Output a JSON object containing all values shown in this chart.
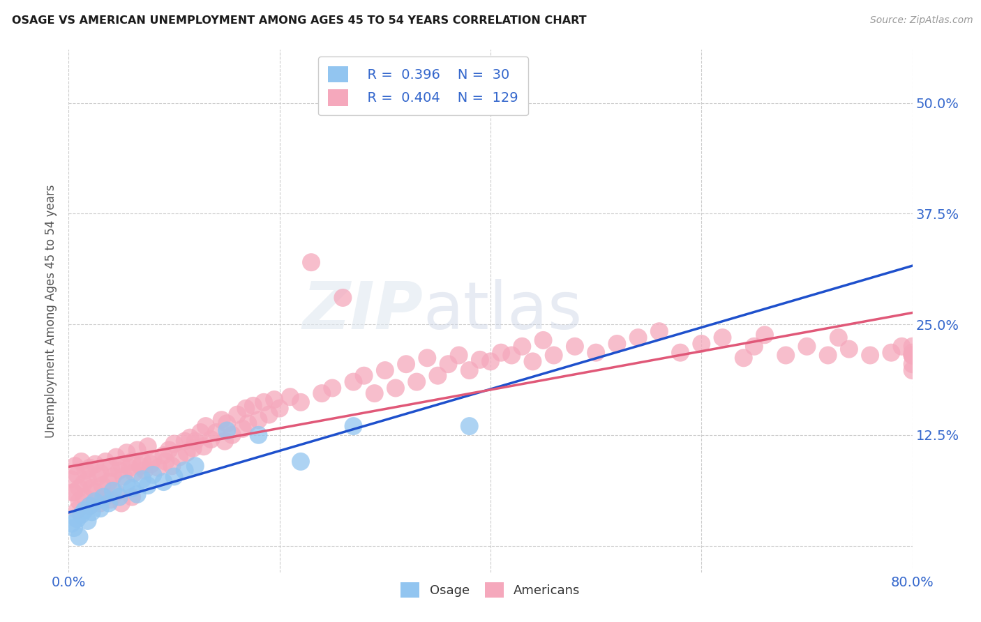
{
  "title": "OSAGE VS AMERICAN UNEMPLOYMENT AMONG AGES 45 TO 54 YEARS CORRELATION CHART",
  "source": "Source: ZipAtlas.com",
  "ylabel": "Unemployment Among Ages 45 to 54 years",
  "xlim": [
    0.0,
    0.8
  ],
  "ylim": [
    -0.03,
    0.56
  ],
  "xtick_positions": [
    0.0,
    0.2,
    0.4,
    0.6,
    0.8
  ],
  "xticklabels": [
    "0.0%",
    "",
    "",
    "",
    "80.0%"
  ],
  "ytick_positions": [
    0.0,
    0.125,
    0.25,
    0.375,
    0.5
  ],
  "yticklabels_right": [
    "",
    "12.5%",
    "25.0%",
    "37.5%",
    "50.0%"
  ],
  "background_color": "#ffffff",
  "grid_color": "#cccccc",
  "osage_color": "#92C5F0",
  "american_color": "#F5A8BC",
  "osage_line_color": "#1E50CC",
  "american_line_color": "#E05878",
  "osage_R": 0.396,
  "osage_N": 30,
  "american_R": 0.404,
  "american_N": 129,
  "osage_x": [
    0.003,
    0.005,
    0.008,
    0.01,
    0.012,
    0.015,
    0.018,
    0.02,
    0.022,
    0.025,
    0.03,
    0.033,
    0.038,
    0.042,
    0.048,
    0.055,
    0.06,
    0.065,
    0.07,
    0.075,
    0.08,
    0.09,
    0.1,
    0.11,
    0.12,
    0.15,
    0.18,
    0.22,
    0.27,
    0.38
  ],
  "osage_y": [
    0.025,
    0.02,
    0.03,
    0.01,
    0.035,
    0.04,
    0.028,
    0.045,
    0.038,
    0.05,
    0.042,
    0.055,
    0.048,
    0.062,
    0.055,
    0.07,
    0.065,
    0.058,
    0.075,
    0.068,
    0.08,
    0.072,
    0.078,
    0.085,
    0.09,
    0.13,
    0.125,
    0.095,
    0.135,
    0.135
  ],
  "american_x": [
    0.002,
    0.004,
    0.006,
    0.008,
    0.01,
    0.012,
    0.014,
    0.016,
    0.018,
    0.02,
    0.022,
    0.025,
    0.028,
    0.03,
    0.032,
    0.035,
    0.038,
    0.04,
    0.042,
    0.045,
    0.048,
    0.05,
    0.052,
    0.055,
    0.058,
    0.06,
    0.062,
    0.065,
    0.068,
    0.07,
    0.072,
    0.075,
    0.078,
    0.08,
    0.085,
    0.09,
    0.092,
    0.095,
    0.098,
    0.1,
    0.105,
    0.11,
    0.112,
    0.115,
    0.118,
    0.12,
    0.125,
    0.128,
    0.13,
    0.135,
    0.14,
    0.145,
    0.148,
    0.15,
    0.155,
    0.16,
    0.165,
    0.168,
    0.17,
    0.175,
    0.18,
    0.185,
    0.19,
    0.195,
    0.2,
    0.21,
    0.22,
    0.23,
    0.24,
    0.25,
    0.26,
    0.27,
    0.28,
    0.29,
    0.3,
    0.31,
    0.32,
    0.33,
    0.34,
    0.35,
    0.36,
    0.37,
    0.38,
    0.39,
    0.4,
    0.41,
    0.42,
    0.43,
    0.44,
    0.45,
    0.46,
    0.48,
    0.5,
    0.52,
    0.54,
    0.56,
    0.58,
    0.6,
    0.62,
    0.64,
    0.65,
    0.66,
    0.68,
    0.7,
    0.72,
    0.73,
    0.74,
    0.76,
    0.78,
    0.79,
    0.8,
    0.8,
    0.8,
    0.8,
    0.8,
    0.8,
    0.8,
    0.005,
    0.008,
    0.01,
    0.015,
    0.02,
    0.025,
    0.03,
    0.035,
    0.04,
    0.045,
    0.05,
    0.06
  ],
  "american_y": [
    0.075,
    0.06,
    0.09,
    0.08,
    0.065,
    0.095,
    0.07,
    0.085,
    0.075,
    0.088,
    0.065,
    0.092,
    0.078,
    0.082,
    0.068,
    0.095,
    0.072,
    0.088,
    0.078,
    0.1,
    0.085,
    0.092,
    0.078,
    0.105,
    0.088,
    0.095,
    0.082,
    0.108,
    0.09,
    0.095,
    0.085,
    0.112,
    0.092,
    0.098,
    0.088,
    0.102,
    0.095,
    0.108,
    0.09,
    0.115,
    0.1,
    0.118,
    0.105,
    0.122,
    0.11,
    0.118,
    0.128,
    0.112,
    0.135,
    0.12,
    0.128,
    0.142,
    0.118,
    0.138,
    0.125,
    0.148,
    0.132,
    0.155,
    0.138,
    0.158,
    0.142,
    0.162,
    0.148,
    0.165,
    0.155,
    0.168,
    0.162,
    0.32,
    0.172,
    0.178,
    0.28,
    0.185,
    0.192,
    0.172,
    0.198,
    0.178,
    0.205,
    0.185,
    0.212,
    0.192,
    0.205,
    0.215,
    0.198,
    0.21,
    0.208,
    0.218,
    0.215,
    0.225,
    0.208,
    0.232,
    0.215,
    0.225,
    0.218,
    0.228,
    0.235,
    0.242,
    0.218,
    0.228,
    0.235,
    0.212,
    0.225,
    0.238,
    0.215,
    0.225,
    0.215,
    0.235,
    0.222,
    0.215,
    0.218,
    0.225,
    0.205,
    0.225,
    0.215,
    0.215,
    0.218,
    0.198,
    0.215,
    0.06,
    0.04,
    0.05,
    0.055,
    0.045,
    0.06,
    0.048,
    0.055,
    0.052,
    0.06,
    0.048,
    0.055
  ]
}
